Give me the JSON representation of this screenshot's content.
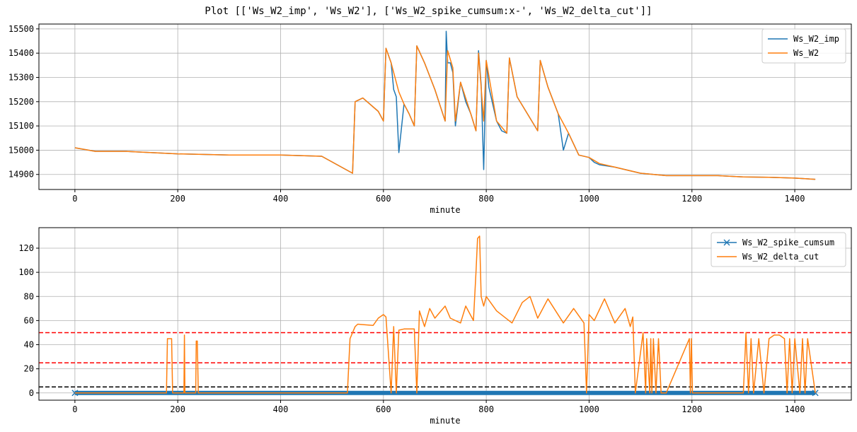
{
  "figure_title": "Plot [['Ws_W2_imp', 'Ws_W2'], ['Ws_W2_spike_cumsum:x-', 'Ws_W2_delta_cut']]",
  "colors": {
    "blue": "#1f77b4",
    "orange": "#ff7f0e",
    "red": "#ff0000",
    "black": "#000000",
    "grid": "#b0b0b0"
  },
  "chart_data": [
    {
      "type": "line",
      "xlabel": "minute",
      "ylabel": "",
      "xlim": [
        -70,
        1510
      ],
      "ylim": [
        14838,
        15520
      ],
      "xticks": [
        0,
        200,
        400,
        600,
        800,
        1000,
        1200,
        1400
      ],
      "yticks": [
        14900,
        15000,
        15100,
        15200,
        15300,
        15400,
        15500
      ],
      "grid": true,
      "legend_position": "top-right",
      "series": [
        {
          "name": "Ws_W2_imp",
          "color": "#1f77b4",
          "x": [
            0,
            40,
            100,
            200,
            300,
            400,
            480,
            540,
            545,
            560,
            590,
            600,
            605,
            615,
            620,
            625,
            630,
            640,
            650,
            660,
            665,
            680,
            700,
            720,
            722,
            725,
            730,
            735,
            740,
            750,
            760,
            770,
            780,
            785,
            790,
            795,
            800,
            805,
            820,
            830,
            840,
            845,
            860,
            880,
            900,
            905,
            920,
            940,
            950,
            960,
            980,
            1000,
            1010,
            1020,
            1050,
            1100,
            1150,
            1200,
            1250,
            1300,
            1350,
            1400,
            1440
          ],
          "y": [
            15010,
            14995,
            14995,
            14985,
            14980,
            14980,
            14975,
            14905,
            15200,
            15215,
            15160,
            15120,
            15420,
            15360,
            15250,
            15220,
            14990,
            15190,
            15150,
            15100,
            15430,
            15360,
            15250,
            15120,
            15490,
            15360,
            15360,
            15320,
            15100,
            15280,
            15200,
            15150,
            15080,
            15410,
            15270,
            14920,
            15370,
            15260,
            15120,
            15080,
            15070,
            15380,
            15220,
            15150,
            15080,
            15370,
            15260,
            15150,
            15000,
            15070,
            14980,
            14970,
            14950,
            14940,
            14930,
            14905,
            14895,
            14895,
            14895,
            14890,
            14888,
            14885,
            14880
          ]
        },
        {
          "name": "Ws_W2",
          "color": "#ff7f0e",
          "x": [
            0,
            40,
            100,
            200,
            300,
            400,
            480,
            540,
            545,
            560,
            590,
            600,
            605,
            615,
            630,
            640,
            650,
            660,
            665,
            680,
            700,
            720,
            725,
            735,
            740,
            750,
            770,
            780,
            785,
            795,
            800,
            820,
            840,
            845,
            860,
            880,
            900,
            905,
            920,
            940,
            960,
            980,
            1000,
            1020,
            1050,
            1100,
            1150,
            1200,
            1250,
            1300,
            1350,
            1400,
            1440
          ],
          "y": [
            15010,
            14995,
            14995,
            14985,
            14980,
            14980,
            14975,
            14905,
            15200,
            15215,
            15160,
            15120,
            15420,
            15360,
            15240,
            15190,
            15150,
            15100,
            15430,
            15360,
            15250,
            15120,
            15410,
            15340,
            15120,
            15280,
            15150,
            15080,
            15400,
            15120,
            15370,
            15120,
            15070,
            15380,
            15220,
            15150,
            15080,
            15370,
            15260,
            15150,
            15070,
            14980,
            14970,
            14945,
            14930,
            14905,
            14895,
            14895,
            14895,
            14890,
            14888,
            14885,
            14880
          ]
        }
      ]
    },
    {
      "type": "line",
      "xlabel": "minute",
      "ylabel": "",
      "xlim": [
        -70,
        1510
      ],
      "ylim": [
        -6,
        137
      ],
      "xticks": [
        0,
        200,
        400,
        600,
        800,
        1000,
        1200,
        1400
      ],
      "yticks": [
        0,
        20,
        40,
        60,
        80,
        100,
        120
      ],
      "grid": true,
      "legend_position": "top-right",
      "series": [
        {
          "name": "Ws_W2_spike_cumsum",
          "color": "#1f77b4",
          "marker": "x",
          "x": [
            0,
            1440
          ],
          "y": [
            0,
            0
          ]
        },
        {
          "name": "Ws_W2_delta_cut",
          "color": "#ff7f0e",
          "x": [
            0,
            178,
            180,
            188,
            190,
            212,
            213,
            214,
            235,
            236,
            238,
            240,
            530,
            535,
            545,
            550,
            580,
            590,
            600,
            605,
            615,
            620,
            625,
            630,
            640,
            660,
            665,
            670,
            680,
            690,
            700,
            720,
            730,
            750,
            760,
            775,
            780,
            783,
            787,
            790,
            795,
            800,
            820,
            850,
            870,
            885,
            900,
            920,
            950,
            970,
            990,
            995,
            1000,
            1010,
            1030,
            1050,
            1070,
            1080,
            1085,
            1090,
            1105,
            1110,
            1112,
            1118,
            1120,
            1122,
            1125,
            1130,
            1135,
            1140,
            1150,
            1195,
            1197,
            1199,
            1201,
            1300,
            1305,
            1310,
            1315,
            1320,
            1330,
            1340,
            1350,
            1360,
            1370,
            1380,
            1385,
            1390,
            1395,
            1400,
            1410,
            1415,
            1420,
            1425,
            1440
          ],
          "y": [
            0,
            0,
            45,
            45,
            0,
            0,
            48,
            0,
            0,
            43,
            43,
            0,
            0,
            45,
            55,
            57,
            56,
            62,
            65,
            63,
            0,
            55,
            0,
            52,
            53,
            53,
            0,
            68,
            55,
            70,
            62,
            72,
            62,
            58,
            72,
            60,
            100,
            128,
            130,
            80,
            72,
            80,
            68,
            58,
            75,
            80,
            62,
            78,
            58,
            70,
            58,
            0,
            65,
            60,
            78,
            58,
            70,
            55,
            63,
            0,
            50,
            0,
            45,
            0,
            45,
            0,
            45,
            0,
            45,
            0,
            0,
            45,
            0,
            45,
            0,
            0,
            50,
            0,
            45,
            0,
            45,
            0,
            45,
            48,
            48,
            45,
            0,
            45,
            0,
            45,
            0,
            45,
            0,
            45,
            0
          ]
        }
      ],
      "reference_lines": [
        {
          "y": 50,
          "color": "#ff0000",
          "style": "dashed"
        },
        {
          "y": 25,
          "color": "#ff0000",
          "style": "dashed"
        },
        {
          "y": 5,
          "color": "#000000",
          "style": "dashed"
        }
      ]
    }
  ]
}
